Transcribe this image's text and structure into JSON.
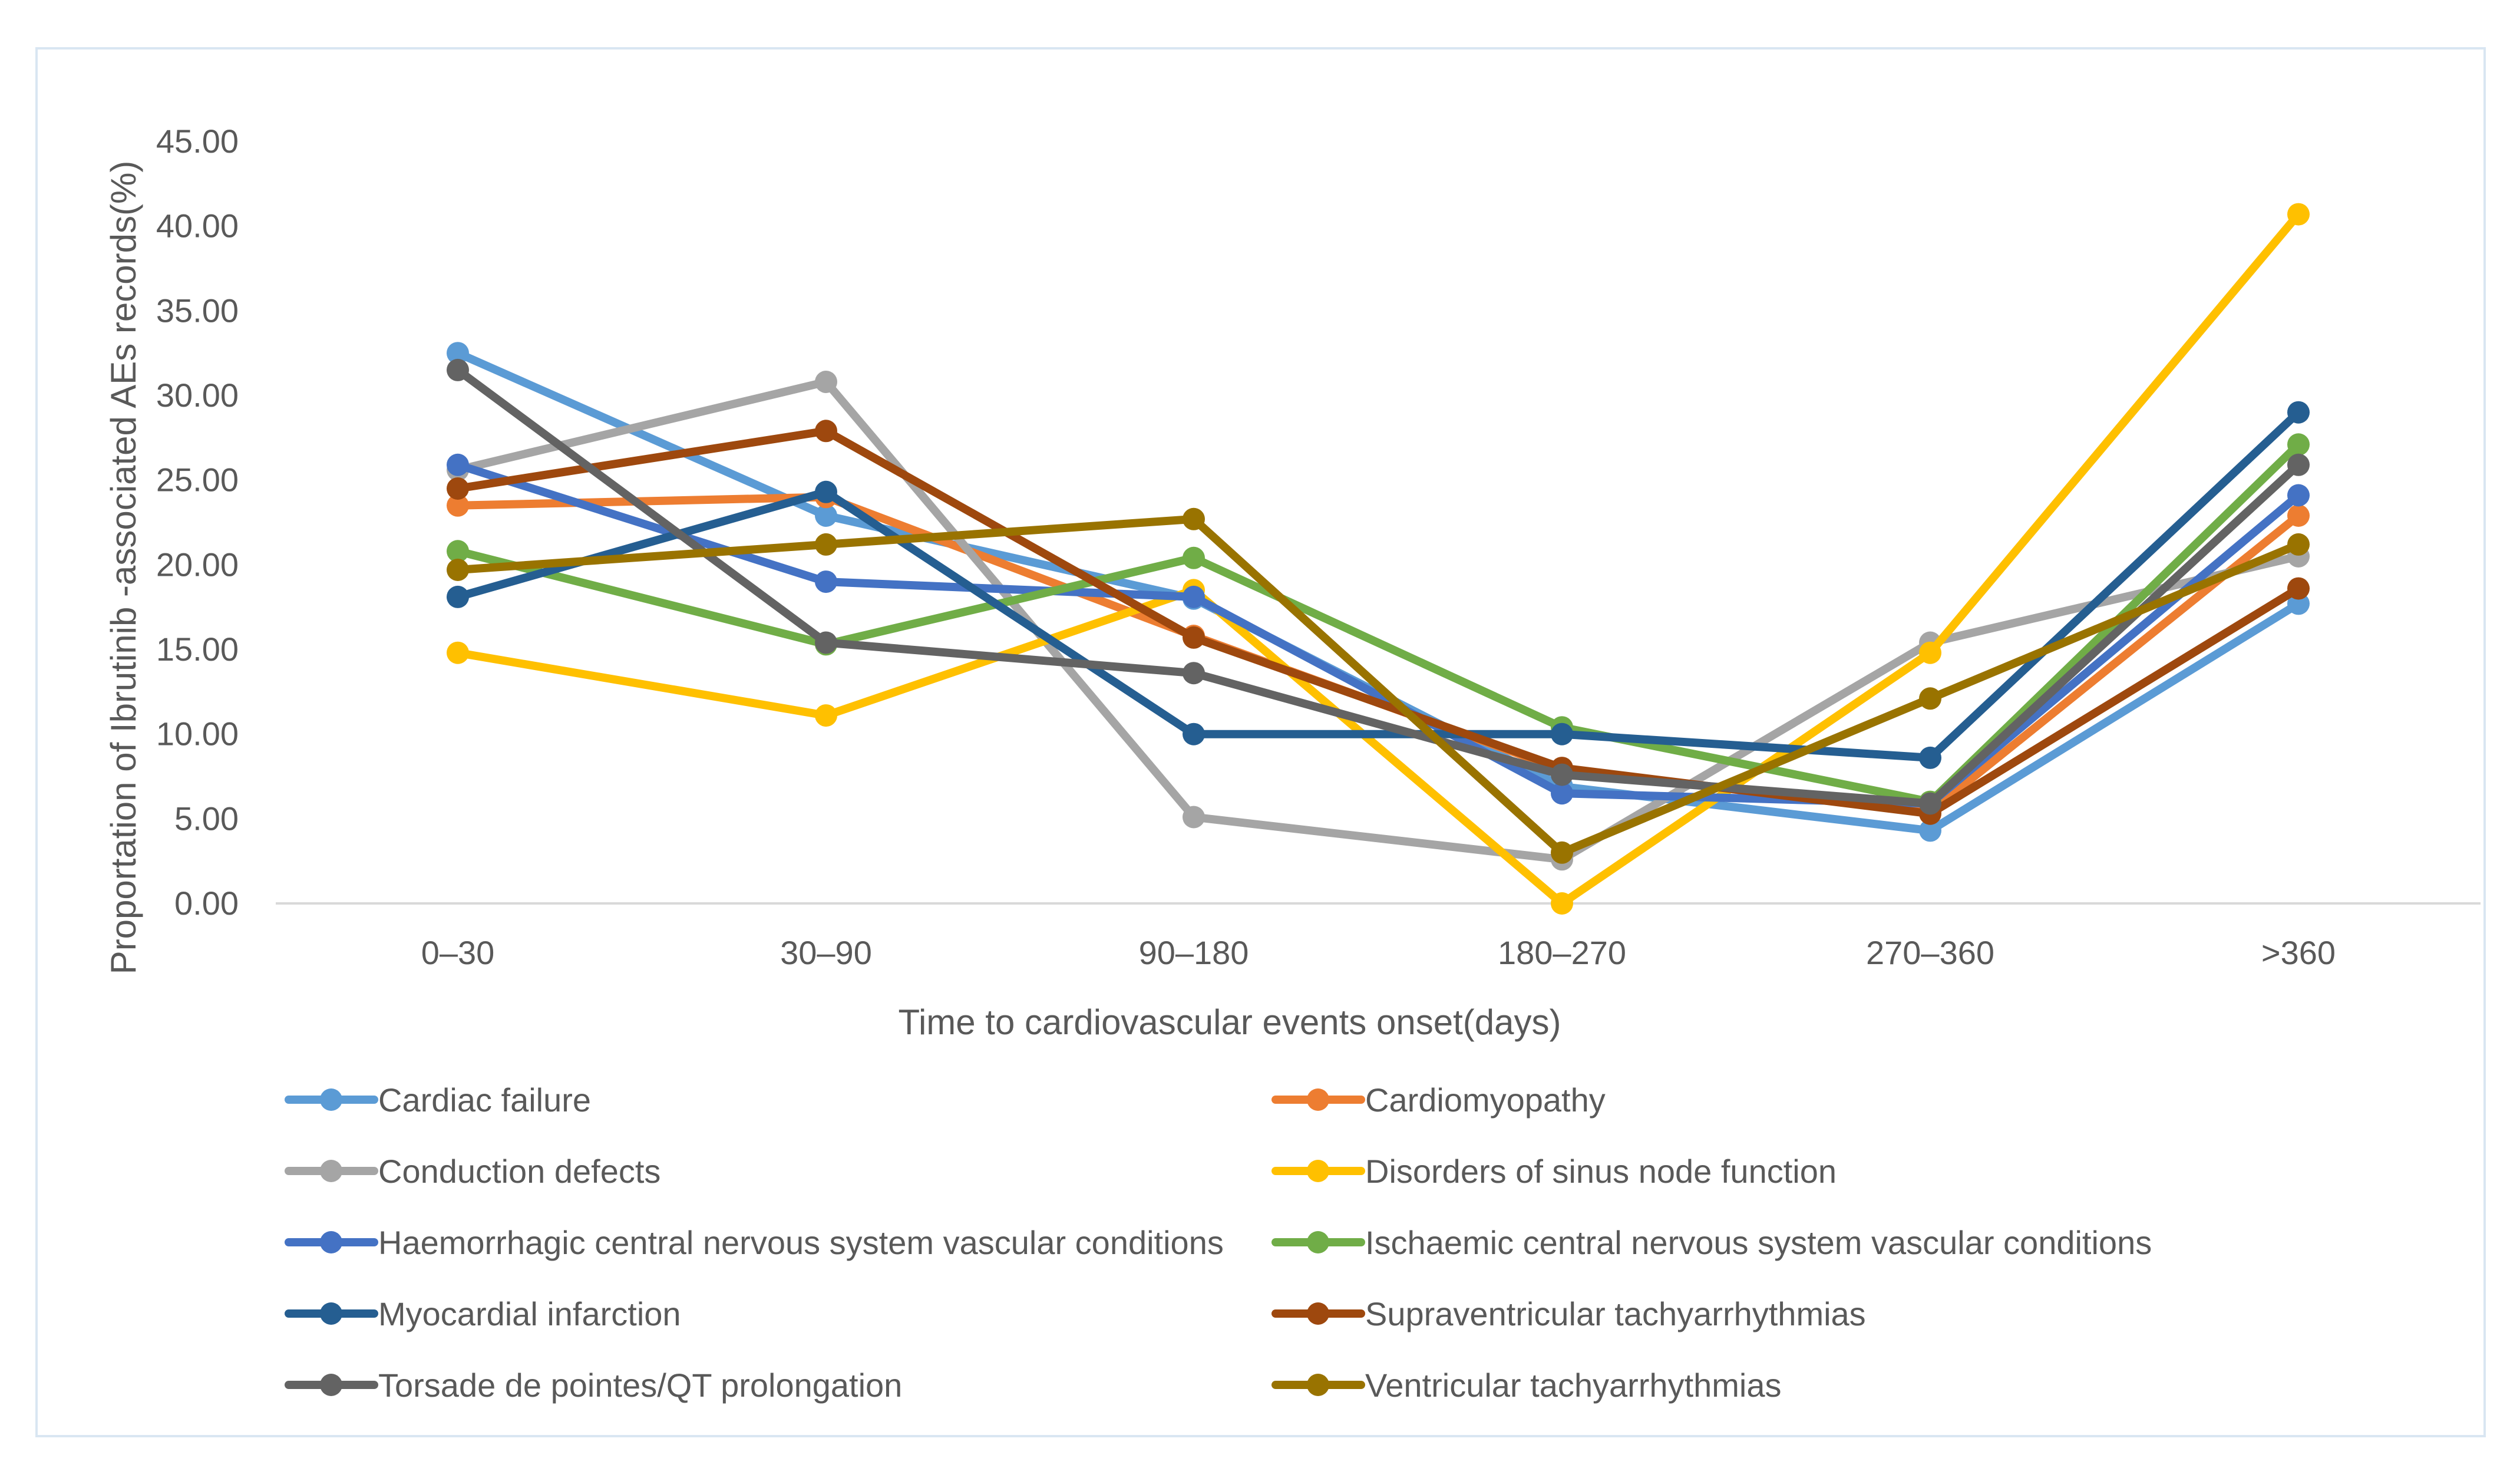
{
  "chart_data": {
    "type": "line",
    "title": "",
    "xlabel": "Time to cardiovascular events onset(days)",
    "ylabel": "Proportation of Ibrutinib -associated AEs records(%)",
    "ylim": [
      0,
      45
    ],
    "ytick_step": 5,
    "ytick_labels": [
      "0.00",
      "5.00",
      "10.00",
      "15.00",
      "20.00",
      "25.00",
      "30.00",
      "35.00",
      "40.00",
      "45.00"
    ],
    "categories": [
      "0–30",
      "30–90",
      "90–180",
      "180–270",
      "270–360",
      ">360"
    ],
    "grid": false,
    "legend_position": "bottom",
    "series": [
      {
        "name": "Cardiac failure",
        "color": "#5B9BD5",
        "values": [
          32.5,
          22.9,
          18.0,
          6.9,
          4.3,
          17.7
        ]
      },
      {
        "name": "Cardiomyopathy",
        "color": "#ED7D31",
        "values": [
          23.5,
          24.0,
          15.8,
          7.9,
          5.4,
          22.9
        ]
      },
      {
        "name": "Conduction defects",
        "color": "#A5A5A5",
        "values": [
          25.6,
          30.8,
          5.1,
          2.6,
          15.4,
          20.5
        ]
      },
      {
        "name": "Disorders of sinus node function",
        "color": "#FFC000",
        "values": [
          14.8,
          11.1,
          18.5,
          0.0,
          14.8,
          40.7
        ]
      },
      {
        "name": "Haemorrhagic central nervous system vascular conditions",
        "color": "#4472C4",
        "values": [
          25.9,
          19.0,
          18.1,
          6.5,
          5.9,
          24.1
        ]
      },
      {
        "name": "Ischaemic central nervous system vascular conditions",
        "color": "#70AD47",
        "values": [
          20.8,
          15.3,
          20.4,
          10.4,
          6.0,
          27.1
        ]
      },
      {
        "name": "Myocardial infarction",
        "color": "#255E91",
        "values": [
          18.1,
          24.3,
          10.0,
          10.0,
          8.6,
          29.0
        ]
      },
      {
        "name": "Supraventricular tachyarrhythmias",
        "color": "#9E480E",
        "values": [
          24.5,
          27.9,
          15.7,
          8.0,
          5.3,
          18.6
        ]
      },
      {
        "name": "Torsade de pointes/QT prolongation",
        "color": "#636363",
        "values": [
          31.5,
          15.4,
          13.6,
          7.6,
          5.9,
          25.9
        ]
      },
      {
        "name": "Ventricular tachyarrhythmias",
        "color": "#997300",
        "values": [
          19.7,
          21.2,
          22.7,
          3.0,
          12.1,
          21.2
        ]
      }
    ]
  }
}
